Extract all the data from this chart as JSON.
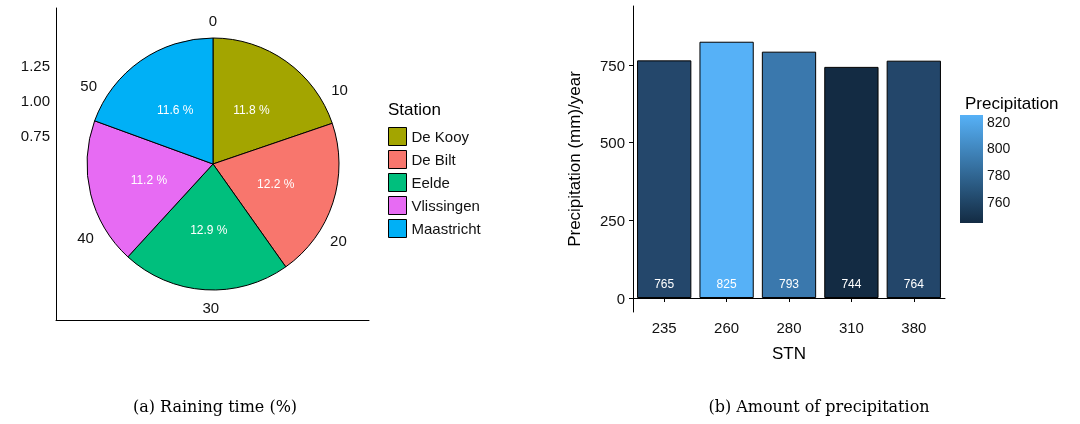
{
  "chart_data": [
    {
      "type": "pie",
      "title": "(a) Raining time (%)",
      "legend_title": "Station",
      "categories": [
        "De Kooy",
        "De Bilt",
        "Eelde",
        "Vlissingen",
        "Maastricht"
      ],
      "values": [
        11.8,
        12.2,
        12.9,
        11.2,
        11.6
      ],
      "value_labels": [
        "11.8 %",
        "12.2 %",
        "12.9 %",
        "11.2 %",
        "11.6 %"
      ],
      "colors": [
        "#a3a500",
        "#f8766d",
        "#00bf7d",
        "#e76bf3",
        "#00b0f6"
      ],
      "annotations": [
        "0",
        "10",
        "20",
        "30",
        "40",
        "50",
        "1.25",
        "1.00",
        "0.75"
      ],
      "legend": "right",
      "grid": false
    },
    {
      "type": "bar",
      "title": "(b) Amount of precipitation",
      "xlabel": "STN",
      "ylabel": "Precipitation (mm)/year",
      "clabel": "Precipitation",
      "categories": [
        "235",
        "260",
        "280",
        "310",
        "380"
      ],
      "values": [
        765,
        825,
        793,
        744,
        764
      ],
      "colors": [
        "#24476b",
        "#56b1f7",
        "#3a78ad",
        "#132b43",
        "#23466a"
      ],
      "ylim": [
        -45,
        940
      ],
      "yticks": [
        0,
        250,
        500,
        750
      ],
      "clim": [
        744,
        825
      ],
      "cticks": [
        760,
        780,
        800,
        820
      ],
      "data_labels": true,
      "grid": false,
      "legend": false
    }
  ]
}
